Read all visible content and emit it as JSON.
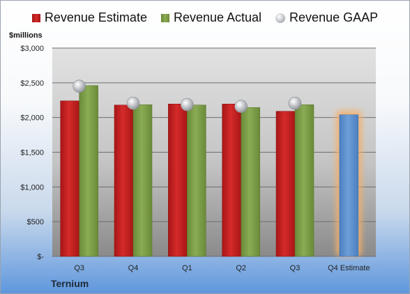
{
  "company": "Ternium",
  "units_label": "$millions",
  "colors": {
    "estimate": "#d42a2a",
    "actual": "#8aac54",
    "gaap": "#b9bcc1",
    "projection": "#6d9fd8",
    "projection_glow": "#f5b06b"
  },
  "chart_data": {
    "type": "bar",
    "categories": [
      "Q3",
      "Q4",
      "Q1",
      "Q2",
      "Q3",
      "Q4 Estimate"
    ],
    "series": [
      {
        "name": "Revenue Estimate",
        "type": "bar",
        "values": [
          2240,
          2180,
          2195,
          2195,
          2090,
          2040
        ]
      },
      {
        "name": "Revenue Actual",
        "type": "bar",
        "values": [
          2460,
          2185,
          2180,
          2145,
          2185,
          null
        ]
      },
      {
        "name": "Revenue GAAP",
        "type": "scatter",
        "values": [
          2450,
          2205,
          2185,
          2160,
          2205,
          null
        ]
      }
    ],
    "ylim": [
      0,
      3000
    ],
    "yticks": [
      0,
      500,
      1000,
      1500,
      2000,
      2500,
      3000
    ],
    "ytick_labels": [
      "$-",
      "$500",
      "$1,000",
      "$1,500",
      "$2,000",
      "$2,500",
      "$3,000"
    ],
    "grid": true,
    "legend": "top"
  }
}
